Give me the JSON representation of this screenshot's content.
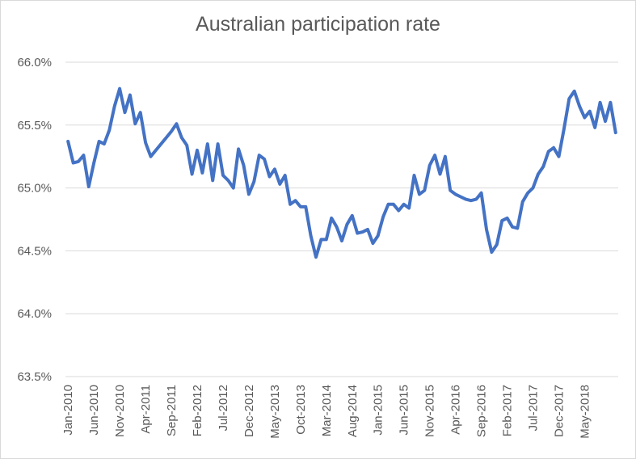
{
  "chart_data": {
    "type": "line",
    "title": "Australian participation rate",
    "xlabel": "",
    "ylabel": "",
    "ylim": [
      63.5,
      66.0
    ],
    "y_ticks": [
      "63.5%",
      "64.0%",
      "64.5%",
      "65.0%",
      "65.5%",
      "66.0%"
    ],
    "y_tick_values": [
      63.5,
      64.0,
      64.5,
      65.0,
      65.5,
      66.0
    ],
    "x_tick_labels": [
      "Jan-2010",
      "Jun-2010",
      "Nov-2010",
      "Apr-2011",
      "Sep-2011",
      "Feb-2012",
      "Jul-2012",
      "Dec-2012",
      "May-2013",
      "Oct-2013",
      "Mar-2014",
      "Aug-2014",
      "Jan-2015",
      "Jun-2015",
      "Nov-2015",
      "Apr-2016",
      "Sep-2016",
      "Feb-2017",
      "Jul-2017",
      "Dec-2017",
      "May-2018"
    ],
    "grid": "horizontal",
    "legend": "none",
    "colors": {
      "line": "#4472c4",
      "grid": "#d9d9d9",
      "text": "#595959"
    },
    "series": [
      {
        "start": "Jan-2010",
        "frequency": "monthly",
        "values": [
          65.37,
          65.2,
          65.21,
          65.26,
          65.01,
          65.2,
          65.37,
          65.35,
          65.46,
          65.65,
          65.79,
          65.6,
          65.74,
          65.51,
          65.6,
          65.36,
          65.25,
          65.3,
          65.35,
          65.4,
          65.45,
          65.51,
          65.4,
          65.34,
          65.11,
          65.3,
          65.12,
          65.35,
          65.06,
          65.35,
          65.1,
          65.06,
          65.0,
          65.31,
          65.18,
          64.95,
          65.05,
          65.26,
          65.23,
          65.09,
          65.15,
          65.03,
          65.1,
          64.87,
          64.9,
          64.85,
          64.85,
          64.62,
          64.45,
          64.59,
          64.59,
          64.76,
          64.69,
          64.58,
          64.71,
          64.78,
          64.64,
          64.65,
          64.67,
          64.56,
          64.62,
          64.77,
          64.87,
          64.87,
          64.82,
          64.87,
          64.84,
          65.1,
          64.95,
          64.98,
          65.18,
          65.26,
          65.11,
          65.25,
          64.98,
          64.95,
          64.93,
          64.91,
          64.9,
          64.91,
          64.96,
          64.67,
          64.49,
          64.55,
          64.74,
          64.76,
          64.69,
          64.68,
          64.89,
          64.96,
          65.0,
          65.11,
          65.17,
          65.29,
          65.32,
          65.25,
          65.47,
          65.71,
          65.77,
          65.65,
          65.56,
          65.61,
          65.48,
          65.68,
          65.53,
          65.68,
          65.44
        ]
      }
    ]
  }
}
